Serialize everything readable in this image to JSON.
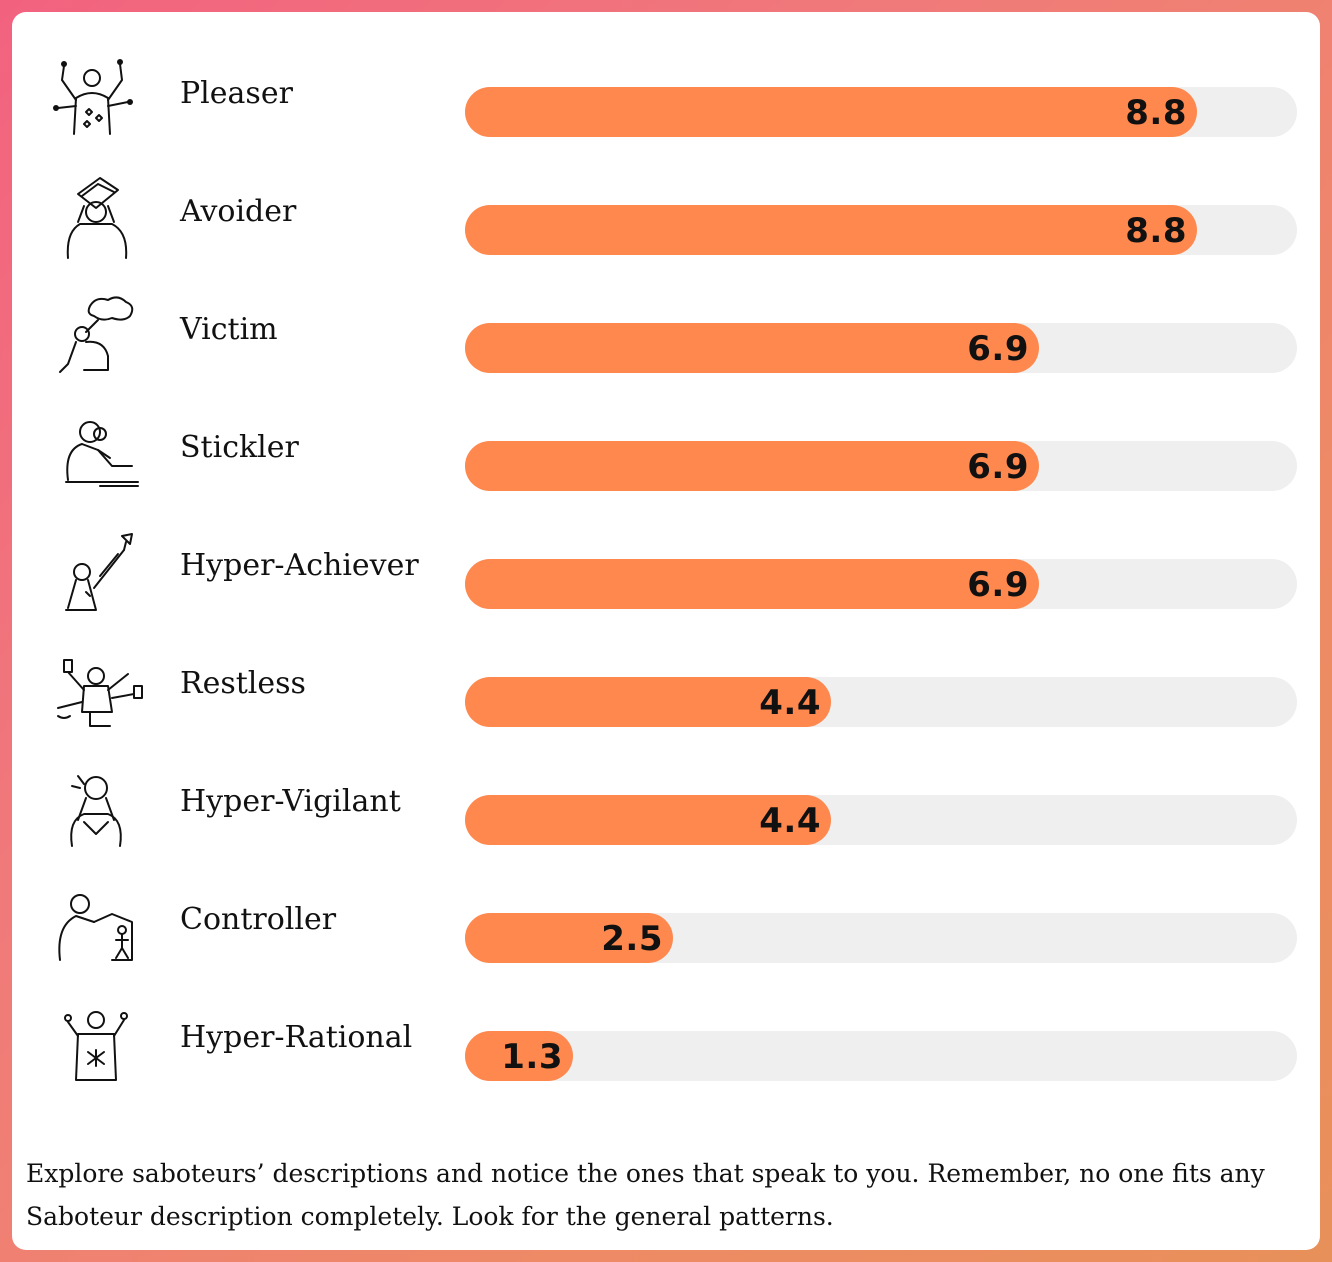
{
  "chart_data": {
    "type": "bar",
    "orientation": "horizontal",
    "categories": [
      "Pleaser",
      "Avoider",
      "Victim",
      "Stickler",
      "Hyper-Achiever",
      "Restless",
      "Hyper-Vigilant",
      "Controller",
      "Hyper-Rational"
    ],
    "values": [
      8.8,
      8.8,
      6.9,
      6.9,
      6.9,
      4.4,
      4.4,
      2.5,
      1.3
    ],
    "value_labels": [
      "8.8",
      "8.8",
      "6.9",
      "6.9",
      "6.9",
      "4.4",
      "4.4",
      "2.5",
      "1.3"
    ],
    "icons": [
      "pleaser-icon",
      "avoider-icon",
      "victim-icon",
      "stickler-icon",
      "hyper-achiever-icon",
      "restless-icon",
      "hyper-vigilant-icon",
      "controller-icon",
      "hyper-rational-icon"
    ],
    "xlim": [
      0,
      10
    ],
    "title": "",
    "xlabel": "",
    "ylabel": "",
    "grid": false
  },
  "colors": {
    "bar_fill": "#fe884d",
    "bar_track": "#efefef"
  },
  "footer": {
    "text": "Explore saboteurs’ descriptions and notice the ones that speak to you. Remember, no one fits any Saboteur description completely. Look for the general patterns."
  }
}
